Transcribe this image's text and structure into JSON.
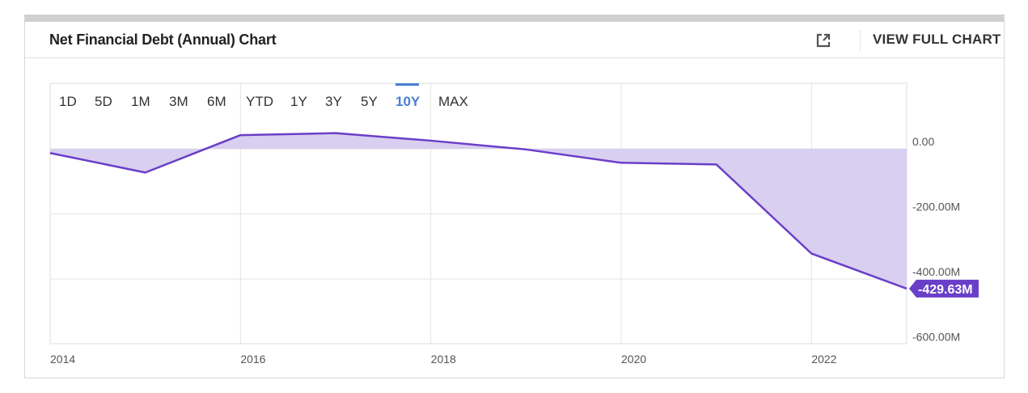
{
  "header": {
    "title": "Net Financial Debt (Annual) Chart",
    "full_chart_label": "VIEW FULL CHART"
  },
  "ranges": [
    "1D",
    "5D",
    "1M",
    "3M",
    "6M",
    "YTD",
    "1Y",
    "3Y",
    "5Y",
    "10Y",
    "MAX"
  ],
  "active_range": "10Y",
  "colors": {
    "line": "#6a3fc8",
    "fill": "#d7ccef",
    "accent": "#4a7fd4",
    "badge": "#6a3fc8"
  },
  "chart_data": {
    "type": "area",
    "title": "Net Financial Debt (Annual) Chart",
    "x": [
      2014,
      2015,
      2016,
      2017,
      2018,
      2019,
      2020,
      2021,
      2022,
      2023
    ],
    "series": [
      {
        "values": [
          -13,
          -73,
          42,
          48,
          25,
          -2,
          -43,
          -48,
          -322,
          -429.63
        ]
      }
    ],
    "x_ticks": [
      "2014",
      "2016",
      "2018",
      "2020",
      "2022"
    ],
    "y_ticks": [
      "0.00",
      "-200.00M",
      "-400.00M",
      "-600.00M"
    ],
    "ylim": [
      -600,
      200
    ],
    "grid": true,
    "last_value_label": "-429.63M"
  }
}
